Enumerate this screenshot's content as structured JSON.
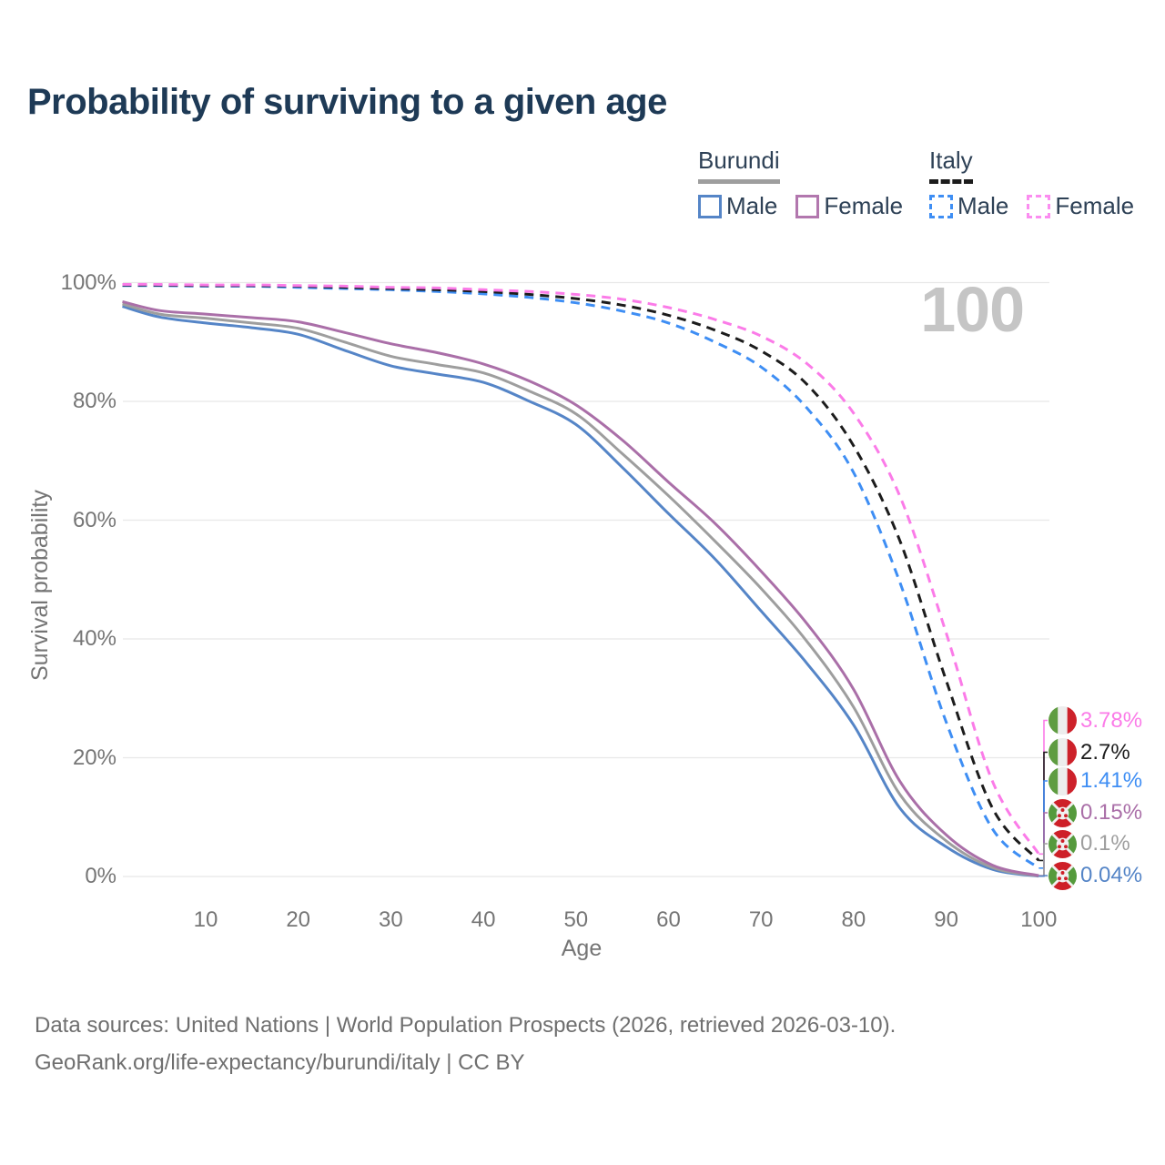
{
  "title": "Probability of surviving to a given age",
  "watermark": "100",
  "colors": {
    "title_text": "#1e3a56",
    "axis_text": "#757575",
    "grid": "#e8e8e8",
    "watermark_text": "#c5c5c5",
    "footer_text": "#6f6f6f",
    "burundi_male": "#5585c7",
    "burundi_both_sexes": "#9e9e9e",
    "burundi_female": "#aa6fa8",
    "italy_male": "#3e8ef4",
    "italy_both_sexes": "#1c1c1c",
    "italy_female": "#fb7be8"
  },
  "legend": {
    "groups": [
      {
        "label": "Burundi",
        "line_style": "solid",
        "underline_color": "#9e9e9e",
        "items": [
          {
            "label": "Male",
            "color": "#5585c7"
          },
          {
            "label": "Female",
            "color": "#b277ae"
          }
        ]
      },
      {
        "label": "Italy",
        "line_style": "dashed",
        "underline_color": "#1c1c1c",
        "items": [
          {
            "label": "Male",
            "color": "#3e8ef4"
          },
          {
            "label": "Female",
            "color": "#fb8df0"
          }
        ]
      }
    ]
  },
  "chart_data": {
    "type": "line",
    "title": "Probability of surviving to a given age",
    "x_label": "Age",
    "y_label": "Survival probability",
    "xlim": [
      0,
      100
    ],
    "ylim": [
      0,
      100
    ],
    "x_ticks": [
      10,
      20,
      30,
      40,
      50,
      60,
      70,
      80,
      90,
      100
    ],
    "y_ticks": [
      100,
      80,
      60,
      40,
      20,
      0
    ],
    "y_tick_suffix": "%",
    "grid": "horizontal-only",
    "legend_position": "top-right",
    "ages": [
      1,
      5,
      10,
      15,
      20,
      25,
      30,
      35,
      40,
      45,
      50,
      55,
      60,
      65,
      70,
      75,
      80,
      85,
      90,
      95,
      100
    ],
    "series": [
      {
        "name": "Italy Female",
        "country": "Italy",
        "sex": "Female",
        "flag": "italy",
        "color": "#fb7be8",
        "dashed": true,
        "end_label": "3.78%",
        "values": [
          99.7,
          99.7,
          99.6,
          99.6,
          99.5,
          99.4,
          99.2,
          99.1,
          98.8,
          98.5,
          98.0,
          97.2,
          95.8,
          93.8,
          91.0,
          86.3,
          78.0,
          64.0,
          41.0,
          16.0,
          3.78
        ]
      },
      {
        "name": "Italy Both sexes",
        "country": "Italy",
        "sex": "Both sexes",
        "flag": "italy",
        "color": "#1c1c1c",
        "dashed": true,
        "end_label": "2.7%",
        "values": [
          99.6,
          99.6,
          99.5,
          99.5,
          99.4,
          99.2,
          99.0,
          98.8,
          98.5,
          98.0,
          97.3,
          96.2,
          94.5,
          92.0,
          88.5,
          82.8,
          72.5,
          56.5,
          33.0,
          11.5,
          2.7
        ]
      },
      {
        "name": "Italy Male",
        "country": "Italy",
        "sex": "Male",
        "flag": "italy",
        "color": "#3e8ef4",
        "dashed": true,
        "end_label": "1.41%",
        "values": [
          99.5,
          99.5,
          99.4,
          99.4,
          99.2,
          99.0,
          98.8,
          98.5,
          98.1,
          97.5,
          96.6,
          95.2,
          93.2,
          90.0,
          85.8,
          78.8,
          68.0,
          49.5,
          26.0,
          8.0,
          1.41
        ]
      },
      {
        "name": "Burundi Female",
        "country": "Burundi",
        "sex": "Female",
        "flag": "burundi",
        "color": "#aa6fa8",
        "dashed": false,
        "end_label": "0.15%",
        "values": [
          96.8,
          95.3,
          94.7,
          94.1,
          93.4,
          91.6,
          89.7,
          88.2,
          86.3,
          83.4,
          79.4,
          73.5,
          66.4,
          59.5,
          51.4,
          42.5,
          31.5,
          16.0,
          7.0,
          1.9,
          0.15
        ]
      },
      {
        "name": "Burundi Both sexes",
        "country": "Burundi",
        "sex": "Both sexes",
        "flag": "burundi",
        "color": "#9e9e9e",
        "dashed": false,
        "end_label": "0.1%",
        "values": [
          96.4,
          94.7,
          94.0,
          93.2,
          92.3,
          90.0,
          87.6,
          86.2,
          84.8,
          81.7,
          77.9,
          71.2,
          64.1,
          56.5,
          48.5,
          39.5,
          28.5,
          13.8,
          6.0,
          1.5,
          0.1
        ]
      },
      {
        "name": "Burundi Male",
        "country": "Burundi",
        "sex": "Male",
        "flag": "burundi",
        "color": "#5585c7",
        "dashed": false,
        "end_label": "0.04%",
        "values": [
          96.0,
          94.2,
          93.2,
          92.4,
          91.3,
          88.6,
          86.0,
          84.6,
          83.2,
          80.0,
          76.1,
          68.9,
          61.1,
          53.5,
          44.7,
          35.8,
          25.5,
          11.5,
          5.0,
          1.2,
          0.04
        ]
      }
    ]
  },
  "footer": {
    "line1": "Data sources: United Nations | World Population Prospects (2026, retrieved 2026-03-10).",
    "line2": "GeoRank.org/life-expectancy/burundi/italy | CC BY"
  }
}
